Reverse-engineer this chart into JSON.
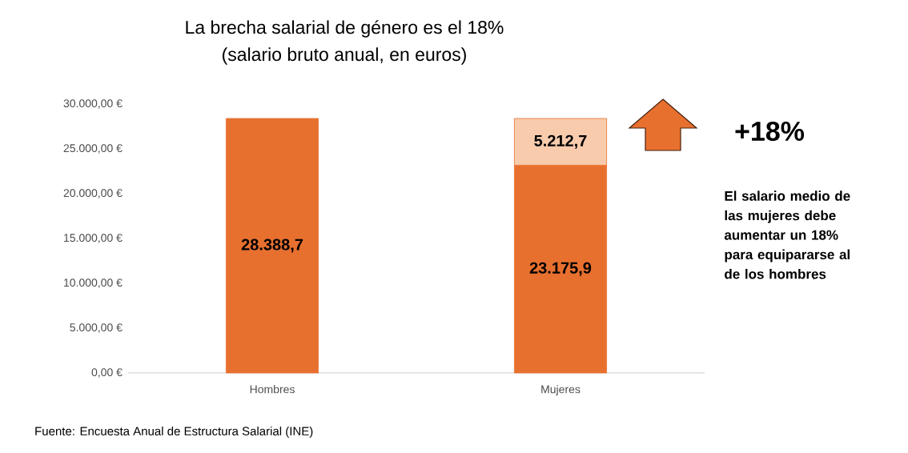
{
  "chart_data": {
    "type": "bar",
    "title": "La brecha salarial de género es el 18%",
    "subtitle": "(salario bruto anual, en euros)",
    "categories": [
      "Hombres",
      "Mujeres"
    ],
    "stacked": true,
    "series": [
      {
        "color": "#e8702f",
        "values": [
          28388.7,
          23175.9
        ],
        "value_labels": [
          "28.388,7",
          "23.175,9"
        ]
      },
      {
        "color": "#f8cbad",
        "values": [
          null,
          5212.7
        ],
        "value_labels": [
          null,
          "5.212,7"
        ]
      }
    ],
    "ylim": [
      0,
      30000
    ],
    "yticks": [
      {
        "value": 0,
        "label": "0,00 €"
      },
      {
        "value": 5000,
        "label": "5.000,00 €"
      },
      {
        "value": 10000,
        "label": "10.000,00 €"
      },
      {
        "value": 15000,
        "label": "15.000,00 €"
      },
      {
        "value": 20000,
        "label": "20.000,00 €"
      },
      {
        "value": 25000,
        "label": "25.000,00 €"
      },
      {
        "value": 30000,
        "label": "30.000,00 €"
      }
    ],
    "grid": false,
    "legend": false,
    "annotations": [
      "+18%",
      "El salario medio de las mujeres debe aumentar un 18% para equipararse al de los hombres",
      "Fuente: Encuesta Anual de Estructura Salarial (INE)"
    ]
  }
}
